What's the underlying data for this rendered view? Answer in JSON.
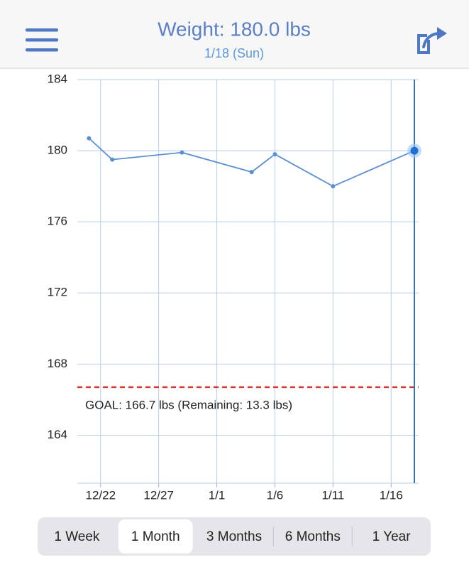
{
  "header": {
    "title": "Weight: 180.0 lbs",
    "subtitle": "1/18 (Sun)"
  },
  "chart_data": {
    "type": "line",
    "x": [
      "12/21",
      "12/23",
      "12/29",
      "1/4",
      "1/6",
      "1/11",
      "1/18"
    ],
    "values": [
      180.7,
      179.5,
      179.9,
      178.8,
      179.8,
      178.0,
      180.0
    ],
    "color": "#5a8fd2",
    "selected_index": 6,
    "xlim": [
      "12/20",
      "1/18"
    ],
    "xticks": [
      "12/22",
      "12/27",
      "1/1",
      "1/6",
      "1/11",
      "1/16"
    ],
    "ylim": [
      161.3,
      184
    ],
    "yticks": [
      164,
      168,
      172,
      176,
      180,
      184
    ],
    "grid": true,
    "goal": 166.7,
    "goal_label": "GOAL: 166.7 lbs (Remaining: 13.3 lbs)"
  },
  "tabs": {
    "items": [
      "1 Week",
      "1 Month",
      "3 Months",
      "6 Months",
      "1 Year"
    ],
    "selected": 1
  }
}
